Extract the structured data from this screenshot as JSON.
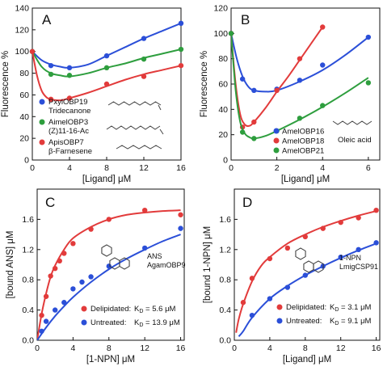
{
  "chart_data": [
    {
      "panel": "A",
      "type": "scatter",
      "xlabel": "[Ligand] μM",
      "ylabel": "Fluorescence %",
      "xlim": [
        0,
        16
      ],
      "ylim": [
        0,
        140
      ],
      "xticks": [
        0,
        4,
        8,
        12,
        16
      ],
      "yticks": [
        0,
        20,
        40,
        60,
        80,
        100,
        120,
        140
      ],
      "legend_position": "bottom-left",
      "series": [
        {
          "name": "PxylOBP19",
          "name2": "Tridecanone",
          "color": "#2b4fd8",
          "x": [
            0,
            2,
            4,
            8,
            12,
            16
          ],
          "y": [
            100,
            87,
            85,
            96,
            112,
            126
          ],
          "fit": [
            [
              0,
              100
            ],
            [
              1,
              92
            ],
            [
              2,
              88
            ],
            [
              3,
              86
            ],
            [
              4,
              85
            ],
            [
              6,
              88
            ],
            [
              8,
              96
            ],
            [
              10,
              104
            ],
            [
              12,
              112
            ],
            [
              14,
              119
            ],
            [
              16,
              126
            ]
          ]
        },
        {
          "name": "AimelOBP3",
          "name2": "(Z)11-16-Ac",
          "color": "#2e9e3e",
          "x": [
            0,
            2,
            4,
            8,
            12,
            16
          ],
          "y": [
            100,
            79,
            78,
            85,
            93,
            102
          ],
          "fit": [
            [
              0,
              100
            ],
            [
              1,
              86
            ],
            [
              2,
              80
            ],
            [
              3,
              78
            ],
            [
              4,
              77
            ],
            [
              6,
              80
            ],
            [
              8,
              85
            ],
            [
              10,
              89
            ],
            [
              12,
              94
            ],
            [
              14,
              98
            ],
            [
              16,
              102
            ]
          ]
        },
        {
          "name": "ApisOBP7",
          "name2": "β-Farnesene",
          "color": "#e23b3b",
          "x": [
            0,
            2,
            4,
            8,
            12,
            16
          ],
          "y": [
            100,
            56,
            57,
            70,
            77,
            87
          ],
          "fit": [
            [
              0,
              100
            ],
            [
              0.5,
              78
            ],
            [
              1,
              64
            ],
            [
              1.5,
              58
            ],
            [
              2,
              56
            ],
            [
              3,
              55
            ],
            [
              4,
              57
            ],
            [
              6,
              62
            ],
            [
              8,
              68
            ],
            [
              10,
              74
            ],
            [
              12,
              79
            ],
            [
              14,
              83
            ],
            [
              16,
              87
            ]
          ]
        }
      ]
    },
    {
      "panel": "B",
      "type": "scatter",
      "xlabel": "[Ligand] μM",
      "ylabel": "Fluorescence %",
      "xlim": [
        0,
        6.5
      ],
      "ylim": [
        0,
        120
      ],
      "xticks": [
        0,
        2,
        4,
        6
      ],
      "yticks": [
        0,
        20,
        40,
        60,
        80,
        100,
        120
      ],
      "legend_position": "bottom-left",
      "annotation": "Oleic acid",
      "series": [
        {
          "name": "AmelOBP16",
          "color": "#2b4fd8",
          "x": [
            0,
            0.5,
            1,
            2,
            3,
            4,
            6
          ],
          "y": [
            100,
            64,
            55,
            56,
            63,
            75,
            97
          ],
          "fit": [
            [
              0,
              100
            ],
            [
              0.25,
              80
            ],
            [
              0.5,
              66
            ],
            [
              0.75,
              58
            ],
            [
              1,
              55
            ],
            [
              1.5,
              54
            ],
            [
              2,
              55
            ],
            [
              3,
              62
            ],
            [
              4,
              71
            ],
            [
              5,
              83
            ],
            [
              6,
              97
            ]
          ]
        },
        {
          "name": "AmelOBP18",
          "color": "#e23b3b",
          "x": [
            0,
            0.5,
            1,
            2,
            3,
            4
          ],
          "y": [
            100,
            26,
            30,
            55,
            80,
            105
          ],
          "fit": [
            [
              0,
              100
            ],
            [
              0.2,
              60
            ],
            [
              0.4,
              36
            ],
            [
              0.6,
              28
            ],
            [
              0.8,
              27
            ],
            [
              1,
              30
            ],
            [
              1.5,
              41
            ],
            [
              2,
              54
            ],
            [
              2.5,
              66
            ],
            [
              3,
              79
            ],
            [
              3.5,
              92
            ],
            [
              4,
              105
            ]
          ]
        },
        {
          "name": "AmelOBP21",
          "color": "#2e9e3e",
          "x": [
            0,
            0.5,
            1,
            2,
            3,
            4,
            6
          ],
          "y": [
            100,
            22,
            17,
            23,
            33,
            43,
            61
          ],
          "fit": [
            [
              0,
              100
            ],
            [
              0.2,
              55
            ],
            [
              0.4,
              30
            ],
            [
              0.6,
              21
            ],
            [
              0.8,
              18
            ],
            [
              1,
              17
            ],
            [
              1.5,
              19
            ],
            [
              2,
              23
            ],
            [
              3,
              32
            ],
            [
              4,
              42
            ],
            [
              5,
              53
            ],
            [
              6,
              65
            ]
          ]
        }
      ]
    },
    {
      "panel": "C",
      "type": "scatter",
      "xlabel": "[1-NPN] μM",
      "ylabel": "[bound ANS] μM",
      "xlim": [
        0,
        16.4
      ],
      "ylim": [
        0,
        2.0
      ],
      "xticks": [
        0,
        4,
        8,
        12,
        16
      ],
      "yticks": [
        0,
        0.4,
        0.8,
        1.2,
        1.6
      ],
      "legend_position": "bottom-right",
      "annotation": "ANS AgamOBP9",
      "series": [
        {
          "name": "Delipidated:",
          "kd": "K<sub>D</sub> = 5.6 μM",
          "kd_plain": "KD = 5.6 μM",
          "color": "#e23b3b",
          "x": [
            0.5,
            1,
            1.5,
            2,
            2.5,
            3,
            4,
            6,
            8,
            12,
            16
          ],
          "y": [
            0.33,
            0.58,
            0.85,
            0.95,
            1.05,
            1.15,
            1.28,
            1.47,
            1.6,
            1.72,
            1.66
          ],
          "fit": [
            [
              0,
              0
            ],
            [
              0.5,
              0.35
            ],
            [
              1,
              0.62
            ],
            [
              1.5,
              0.84
            ],
            [
              2,
              0.99
            ],
            [
              3,
              1.2
            ],
            [
              4,
              1.35
            ],
            [
              6,
              1.5
            ],
            [
              8,
              1.6
            ],
            [
              10,
              1.66
            ],
            [
              12,
              1.69
            ],
            [
              14,
              1.71
            ],
            [
              16,
              1.72
            ]
          ]
        },
        {
          "name": "Untreated:",
          "kd": "K<sub>D</sub> = 13.9 μM",
          "kd_plain": "KD = 13.9 μM",
          "color": "#2b4fd8",
          "x": [
            0.5,
            1,
            2,
            3,
            4,
            5,
            6,
            8,
            12,
            16
          ],
          "y": [
            0.12,
            0.25,
            0.4,
            0.5,
            0.68,
            0.77,
            0.84,
            0.98,
            1.22,
            1.48
          ],
          "fit": [
            [
              0,
              0
            ],
            [
              1,
              0.17
            ],
            [
              2,
              0.32
            ],
            [
              3,
              0.45
            ],
            [
              4,
              0.57
            ],
            [
              6,
              0.77
            ],
            [
              8,
              0.94
            ],
            [
              10,
              1.08
            ],
            [
              12,
              1.2
            ],
            [
              14,
              1.31
            ],
            [
              16,
              1.4
            ]
          ]
        }
      ]
    },
    {
      "panel": "D",
      "type": "scatter",
      "xlabel": "[Ligand] μM",
      "ylabel": "[bound 1-NPN] μM",
      "xlim": [
        0,
        16.4
      ],
      "ylim": [
        0,
        2.0
      ],
      "xticks": [
        0,
        4,
        8,
        12,
        16
      ],
      "yticks": [
        0,
        0.4,
        0.8,
        1.2,
        1.6
      ],
      "legend_position": "bottom-right",
      "annotation": "1-NPN LmigCSP91",
      "series": [
        {
          "name": "Delipidated:",
          "kd": "K<sub>D</sub> = 3.1 μM",
          "kd_plain": "KD = 3.1 μM",
          "color": "#e23b3b",
          "x": [
            1,
            2,
            4,
            6,
            8,
            10,
            12,
            14,
            16
          ],
          "y": [
            0.5,
            0.82,
            1.08,
            1.22,
            1.37,
            1.48,
            1.56,
            1.62,
            1.72
          ],
          "fit": [
            [
              0.2,
              0.1
            ],
            [
              0.5,
              0.28
            ],
            [
              1,
              0.48
            ],
            [
              2,
              0.78
            ],
            [
              3,
              0.98
            ],
            [
              4,
              1.1
            ],
            [
              6,
              1.28
            ],
            [
              8,
              1.4
            ],
            [
              10,
              1.5
            ],
            [
              12,
              1.58
            ],
            [
              14,
              1.65
            ],
            [
              16,
              1.71
            ]
          ]
        },
        {
          "name": "Untreated:",
          "kd": "K<sub>D</sub> = 9.1 μM",
          "kd_plain": "KD = 9.1 μM",
          "color": "#2b4fd8",
          "x": [
            2,
            4,
            6,
            8,
            10,
            12,
            14,
            16
          ],
          "y": [
            0.33,
            0.55,
            0.7,
            0.86,
            0.98,
            1.1,
            1.2,
            1.29
          ],
          "fit": [
            [
              0.5,
              0.05
            ],
            [
              1,
              0.12
            ],
            [
              2,
              0.3
            ],
            [
              4,
              0.55
            ],
            [
              6,
              0.72
            ],
            [
              8,
              0.86
            ],
            [
              10,
              0.98
            ],
            [
              12,
              1.09
            ],
            [
              14,
              1.19
            ],
            [
              16,
              1.28
            ]
          ]
        }
      ]
    }
  ]
}
